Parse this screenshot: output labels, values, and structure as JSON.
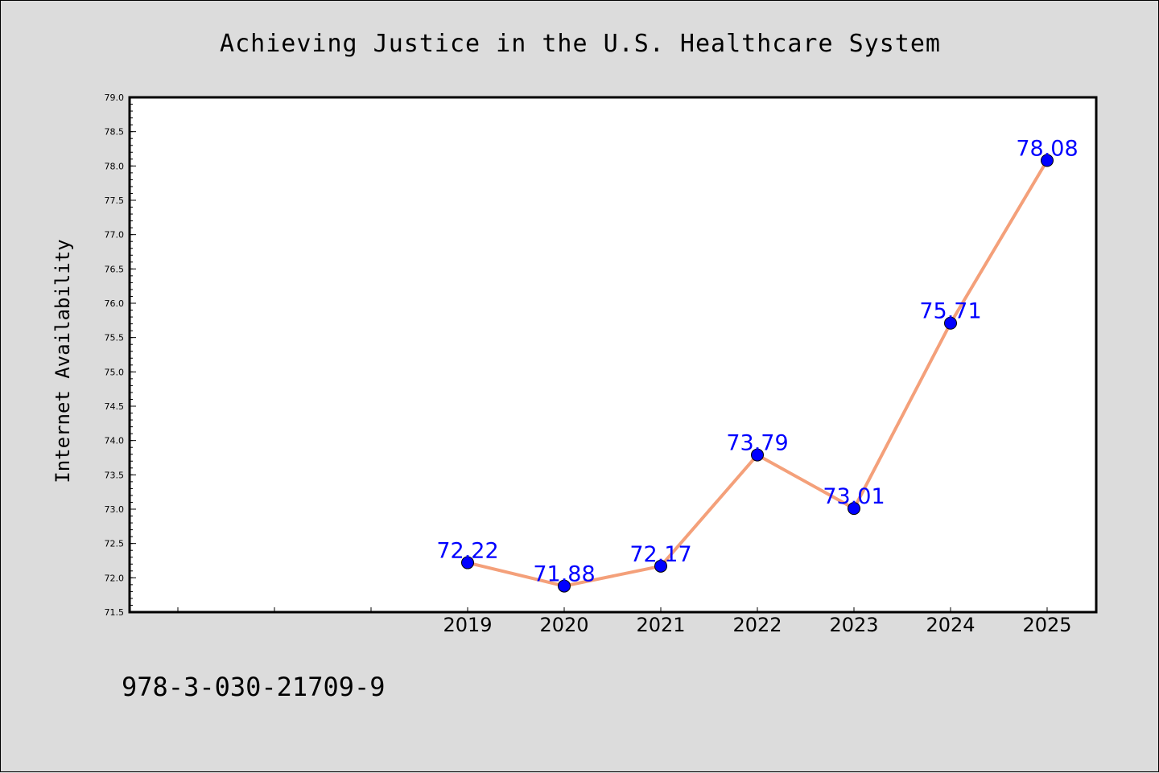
{
  "chart_data": {
    "type": "line",
    "title": "Achieving Justice in the U.S. Healthcare System",
    "xlabel": "",
    "ylabel": "Internet Availability",
    "categories": [
      "2019",
      "2020",
      "2021",
      "2022",
      "2023",
      "2024",
      "2025"
    ],
    "series": [
      {
        "values": [
          72.22,
          71.88,
          72.17,
          73.79,
          73.01,
          75.71,
          78.08
        ],
        "labels": [
          "72.22",
          "71.88",
          "72.17",
          "73.79",
          "73.01",
          "75.71",
          "78.08"
        ],
        "line_color": "#f4a07a",
        "marker_color": "#0000ff"
      }
    ],
    "ylim": [
      71.5,
      79.0
    ],
    "yticks": [
      "71.5",
      "72.0",
      "72.5",
      "73.0",
      "73.5",
      "74.0",
      "74.5",
      "75.0",
      "75.5",
      "76.0",
      "76.5",
      "77.0",
      "77.5",
      "78.0",
      "78.5",
      "79.0"
    ],
    "grid": false,
    "legend": "none"
  },
  "footer": {
    "isbn": "978-3-030-21709-9"
  },
  "colors": {
    "background": "#dcdcdc",
    "plot_background": "#ffffff",
    "label_color": "#0000ff"
  }
}
